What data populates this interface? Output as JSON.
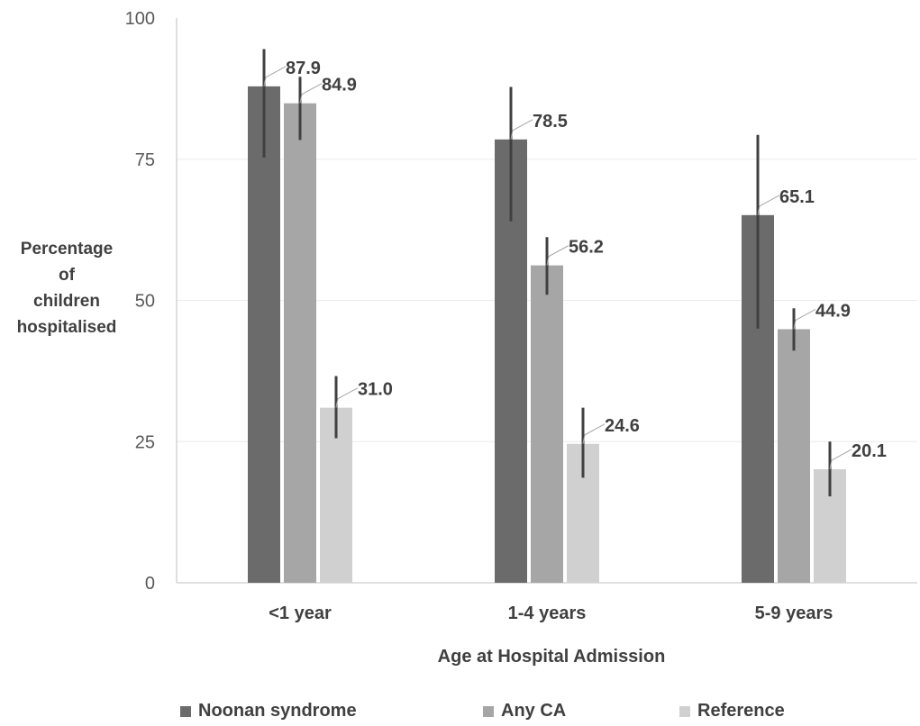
{
  "chart_data": {
    "type": "bar",
    "title": "",
    "xlabel": "Age at Hospital Admission",
    "ylabel_lines": [
      "Percentage",
      "of",
      "children",
      "hospitalised"
    ],
    "ylim": [
      0,
      100
    ],
    "yticks": [
      0,
      25,
      50,
      75,
      100
    ],
    "categories": [
      "<1 year",
      "1-4 years",
      "5-9 years"
    ],
    "series": [
      {
        "name": "Noonan syndrome",
        "color": "#6b6b6b",
        "values": [
          87.9,
          78.5,
          65.1
        ],
        "labels": [
          "87.9",
          "78.5",
          "65.1"
        ],
        "error_low": [
          75.3,
          64.0,
          45.0
        ],
        "error_high": [
          94.5,
          87.8,
          79.3
        ]
      },
      {
        "name": "Any CA",
        "color": "#a6a6a6",
        "values": [
          84.9,
          56.2,
          44.9
        ],
        "labels": [
          "84.9",
          "56.2",
          "44.9"
        ],
        "error_low": [
          78.4,
          51.0,
          41.1
        ],
        "error_high": [
          89.6,
          61.2,
          48.6
        ]
      },
      {
        "name": "Reference",
        "color": "#d0d0d0",
        "values": [
          31.0,
          24.6,
          20.1
        ],
        "labels": [
          "31.0",
          "24.6",
          "20.1"
        ],
        "error_low": [
          25.6,
          18.6,
          15.3
        ],
        "error_high": [
          36.6,
          31.0,
          25.0
        ]
      }
    ],
    "grid": true,
    "legend_position": "bottom"
  }
}
